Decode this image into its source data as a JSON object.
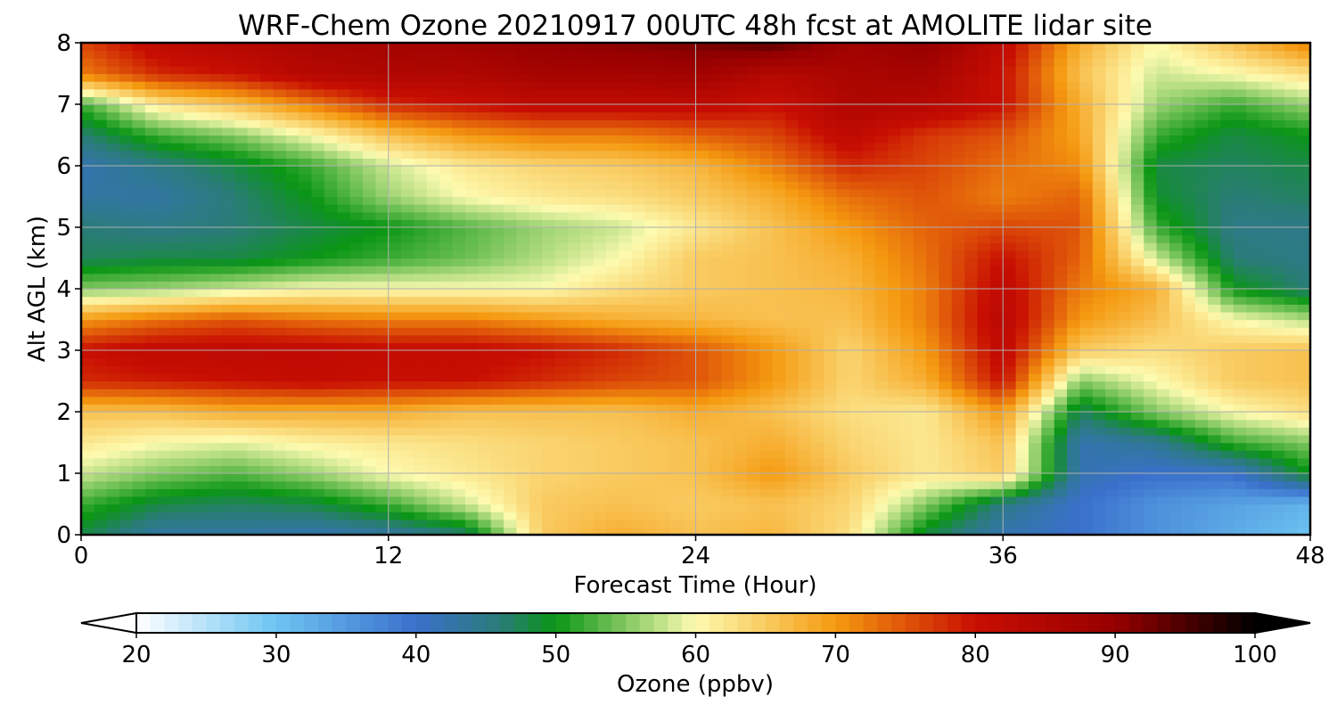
{
  "chart_data": {
    "type": "heatmap",
    "title": "WRF-Chem Ozone  20210917 00UTC 48h fcst at AMOLITE lidar site",
    "xlabel": "Forecast Time (Hour)",
    "ylabel": "Alt AGL (km)",
    "xlim": [
      0,
      48
    ],
    "ylim": [
      0,
      8
    ],
    "xticks": [
      0,
      12,
      24,
      36,
      48
    ],
    "yticks": [
      0,
      1,
      2,
      3,
      4,
      5,
      6,
      7,
      8
    ],
    "grid": true,
    "x": [
      0,
      3,
      6,
      9,
      12,
      15,
      18,
      21,
      24,
      27,
      30,
      33,
      36,
      39,
      42,
      45,
      48
    ],
    "y": [
      0,
      0.5,
      1,
      1.5,
      2,
      2.5,
      3,
      3.5,
      4,
      4.5,
      5,
      5.5,
      6,
      6.5,
      7,
      7.5,
      8
    ],
    "z": [
      [
        48,
        43,
        43,
        42,
        43,
        46,
        65,
        68,
        66,
        67,
        63,
        48,
        42,
        40,
        36,
        33,
        30
      ],
      [
        52,
        48,
        47,
        48,
        52,
        58,
        65,
        66,
        65,
        66,
        64,
        55,
        45,
        40,
        36,
        34,
        32
      ],
      [
        58,
        55,
        53,
        56,
        60,
        62,
        64,
        65,
        66,
        70,
        65,
        62,
        65,
        42,
        40,
        40,
        50
      ],
      [
        62,
        60,
        59,
        61,
        62,
        63,
        64,
        65,
        66,
        68,
        64,
        62,
        66,
        42,
        44,
        52,
        55
      ],
      [
        66,
        66,
        68,
        68,
        68,
        66,
        66,
        66,
        68,
        66,
        63,
        62,
        70,
        47,
        55,
        60,
        63
      ],
      [
        78,
        79,
        80,
        81,
        80,
        80,
        78,
        76,
        75,
        70,
        64,
        68,
        80,
        55,
        60,
        65,
        66
      ],
      [
        80,
        82,
        82,
        82,
        81,
        81,
        80,
        78,
        75,
        70,
        64,
        70,
        82,
        65,
        63,
        65,
        66
      ],
      [
        70,
        73,
        75,
        73,
        72,
        72,
        70,
        68,
        67,
        66,
        66,
        72,
        83,
        70,
        66,
        60,
        57
      ],
      [
        55,
        56,
        58,
        60,
        60,
        60,
        60,
        63,
        65,
        66,
        67,
        72,
        82,
        72,
        68,
        50,
        46
      ],
      [
        47,
        48,
        48,
        50,
        52,
        54,
        57,
        60,
        65,
        66,
        68,
        73,
        80,
        74,
        58,
        46,
        45
      ],
      [
        46,
        45,
        46,
        48,
        50,
        53,
        56,
        58,
        62,
        66,
        70,
        74,
        76,
        75,
        52,
        45,
        45
      ],
      [
        43,
        43,
        46,
        50,
        56,
        60,
        62,
        63,
        65,
        68,
        73,
        75,
        72,
        74,
        49,
        46,
        47
      ],
      [
        42,
        45,
        48,
        52,
        58,
        62,
        64,
        65,
        67,
        72,
        78,
        76,
        73,
        71,
        48,
        47,
        48
      ],
      [
        46,
        52,
        55,
        60,
        66,
        70,
        72,
        72,
        74,
        76,
        82,
        77,
        75,
        69,
        52,
        48,
        50
      ],
      [
        52,
        62,
        66,
        72,
        78,
        80,
        82,
        82,
        82,
        80,
        85,
        84,
        80,
        68,
        56,
        52,
        56
      ],
      [
        72,
        78,
        80,
        84,
        85,
        85,
        87,
        87,
        88,
        84,
        86,
        87,
        80,
        66,
        58,
        60,
        63
      ],
      [
        76,
        82,
        84,
        86,
        87,
        88,
        90,
        91,
        92,
        94,
        88,
        90,
        82,
        68,
        60,
        66,
        72
      ]
    ],
    "colorbar": {
      "label": "Ozone  (ppbv)",
      "min": 20,
      "max": 100,
      "ticks": [
        20,
        30,
        40,
        50,
        60,
        70,
        80,
        90,
        100
      ],
      "extend": "both",
      "colors": [
        {
          "v": 20,
          "c": "#ffffff"
        },
        {
          "v": 30,
          "c": "#6cc4f2"
        },
        {
          "v": 40,
          "c": "#3a70cc"
        },
        {
          "v": 46,
          "c": "#2a7c78"
        },
        {
          "v": 50,
          "c": "#0a9614"
        },
        {
          "v": 60,
          "c": "#fdfbb0"
        },
        {
          "v": 70,
          "c": "#f59a10"
        },
        {
          "v": 80,
          "c": "#c80e02"
        },
        {
          "v": 90,
          "c": "#960000"
        },
        {
          "v": 100,
          "c": "#000000"
        }
      ]
    }
  }
}
